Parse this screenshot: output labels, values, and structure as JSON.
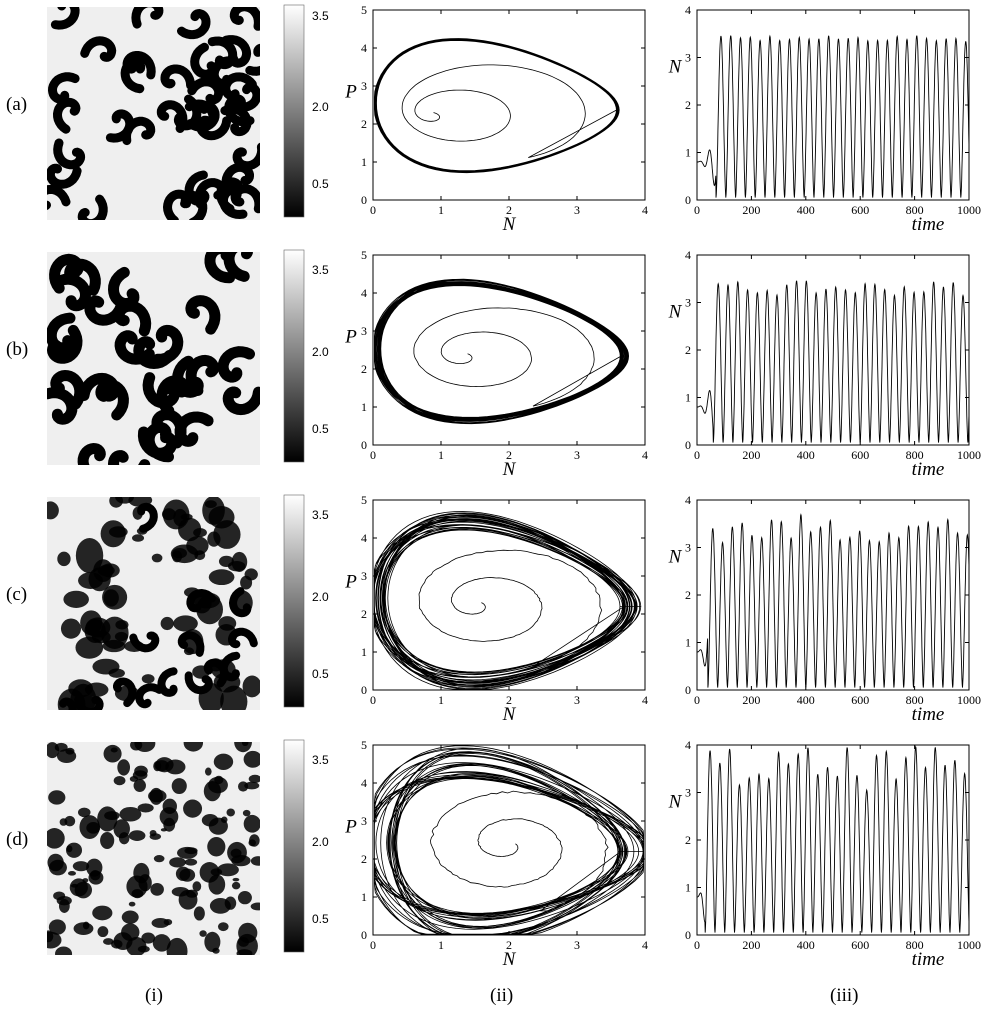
{
  "row_labels": [
    "(a)",
    "(b)",
    "(c)",
    "(d)"
  ],
  "col_labels": [
    "(i)",
    "(ii)",
    "(iii)"
  ],
  "colorbar_ticks": [
    "3.5",
    "2.0",
    "0.5"
  ],
  "chart_data": [
    {
      "type": "line",
      "panel": "(a)(ii)",
      "xlabel": "N",
      "ylabel": "P",
      "xlim": [
        0,
        4
      ],
      "ylim": [
        0,
        5
      ],
      "xticks": [
        0,
        1,
        2,
        3,
        4
      ],
      "yticks": [
        0,
        1,
        2,
        3,
        4,
        5
      ],
      "limit_cycle": {
        "n_min": 0.03,
        "n_max": 3.6,
        "p_min": 0.8,
        "p_max": 4.1,
        "n_at_p_max": 1.1
      },
      "transient_center": [
        0.8,
        2.3
      ],
      "variability": 0.02
    },
    {
      "type": "line",
      "panel": "(a)(iii)",
      "xlabel": "time",
      "ylabel": "N",
      "xlim": [
        0,
        1000
      ],
      "ylim": [
        0,
        4
      ],
      "xticks": [
        0,
        200,
        400,
        600,
        800,
        1000
      ],
      "yticks": [
        0,
        1,
        2,
        3,
        4
      ],
      "period": 36,
      "min": 0.05,
      "max": 3.4,
      "onset": 70,
      "variability": 0.03
    },
    {
      "type": "line",
      "panel": "(b)(ii)",
      "xlabel": "N",
      "ylabel": "P",
      "xlim": [
        0,
        4
      ],
      "ylim": [
        0,
        5
      ],
      "xticks": [
        0,
        1,
        2,
        3,
        4
      ],
      "yticks": [
        0,
        1,
        2,
        3,
        4,
        5
      ],
      "limit_cycle": {
        "n_min": 0.05,
        "n_max": 3.7,
        "p_min": 0.7,
        "p_max": 4.15,
        "n_at_p_max": 1.2
      },
      "transient_center": [
        1.3,
        2.4
      ],
      "variability": 0.06
    },
    {
      "type": "line",
      "panel": "(b)(iii)",
      "xlabel": "time",
      "ylabel": "N",
      "xlim": [
        0,
        1000
      ],
      "ylim": [
        0,
        4
      ],
      "xticks": [
        0,
        200,
        400,
        600,
        800,
        1000
      ],
      "yticks": [
        0,
        1,
        2,
        3,
        4
      ],
      "period": 36,
      "min": 0.05,
      "max": 3.3,
      "onset": 60,
      "variability": 0.08
    },
    {
      "type": "line",
      "panel": "(c)(ii)",
      "xlabel": "N",
      "ylabel": "P",
      "xlim": [
        0,
        4
      ],
      "ylim": [
        0,
        5
      ],
      "xticks": [
        0,
        1,
        2,
        3,
        4
      ],
      "yticks": [
        0,
        1,
        2,
        3,
        4,
        5
      ],
      "limit_cycle": {
        "n_min": 0.05,
        "n_max": 3.8,
        "p_min": 0.3,
        "p_max": 4.3,
        "n_at_p_max": 1.3
      },
      "transient_center": [
        1.5,
        2.3
      ],
      "variability": 0.15
    },
    {
      "type": "line",
      "panel": "(c)(iii)",
      "xlabel": "time",
      "ylabel": "N",
      "xlim": [
        0,
        1000
      ],
      "ylim": [
        0,
        4
      ],
      "xticks": [
        0,
        200,
        400,
        600,
        800,
        1000
      ],
      "yticks": [
        0,
        1,
        2,
        3,
        4
      ],
      "period": 36,
      "min": 0.05,
      "max": 3.4,
      "onset": 40,
      "variability": 0.15
    },
    {
      "type": "line",
      "panel": "(d)(ii)",
      "xlabel": "N",
      "ylabel": "P",
      "xlim": [
        0,
        4
      ],
      "ylim": [
        0,
        5
      ],
      "xticks": [
        0,
        1,
        2,
        3,
        4
      ],
      "yticks": [
        0,
        1,
        2,
        3,
        4,
        5
      ],
      "limit_cycle": {
        "n_min": 0.1,
        "n_max": 3.85,
        "p_min": 0.2,
        "p_max": 4.4,
        "n_at_p_max": 1.2
      },
      "transient_center": [
        2.0,
        2.4
      ],
      "variability": 0.25
    },
    {
      "type": "line",
      "panel": "(d)(iii)",
      "xlabel": "time",
      "ylabel": "N",
      "xlim": [
        0,
        1000
      ],
      "ylim": [
        0,
        4
      ],
      "xticks": [
        0,
        200,
        400,
        600,
        800,
        1000
      ],
      "yticks": [
        0,
        1,
        2,
        3,
        4
      ],
      "period": 36,
      "min": 0.05,
      "max": 3.5,
      "onset": 30,
      "variability": 0.22
    }
  ]
}
